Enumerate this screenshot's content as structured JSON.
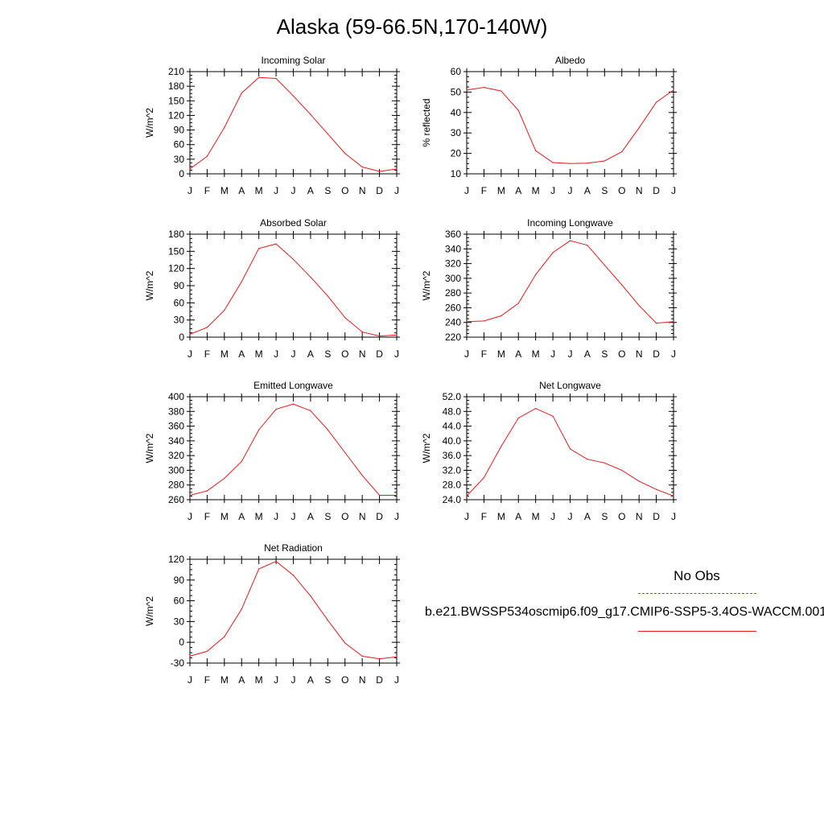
{
  "page": {
    "title": "Alaska (59-66.5N,170-140W)"
  },
  "legend": {
    "obs_label": "No Obs",
    "model_label": "b.e21.BWSSP534oscmip6.f09_g17.CMIP6-SSP5-3.4OS-WACCM.001",
    "obs_color": "#5050ff",
    "model_color": "#e41a1c"
  },
  "chart_data": [
    {
      "type": "line",
      "title": "Incoming Solar",
      "ylabel": "W/m^2",
      "categories": [
        "J",
        "F",
        "M",
        "A",
        "M",
        "J",
        "J",
        "A",
        "S",
        "O",
        "N",
        "D",
        "J"
      ],
      "ylim": [
        0,
        210
      ],
      "yticks": [
        "0",
        "30",
        "60",
        "90",
        "120",
        "150",
        "180",
        "210"
      ],
      "series": [
        {
          "values": [
            10,
            36,
            95,
            166,
            198,
            196,
            160,
            122,
            82,
            42,
            14,
            5,
            10
          ]
        }
      ]
    },
    {
      "type": "line",
      "title": "Albedo",
      "ylabel": "% reflected",
      "categories": [
        "J",
        "F",
        "M",
        "A",
        "M",
        "J",
        "J",
        "A",
        "S",
        "O",
        "N",
        "D",
        "J"
      ],
      "ylim": [
        10,
        60
      ],
      "yticks": [
        "10",
        "20",
        "30",
        "40",
        "50",
        "60"
      ],
      "series": [
        {
          "values": [
            51,
            52.3,
            50.5,
            41,
            21.3,
            15.5,
            15,
            15.2,
            16.3,
            20.8,
            32.5,
            45,
            51
          ]
        }
      ]
    },
    {
      "type": "line",
      "title": "Absorbed Solar",
      "ylabel": "W/m^2",
      "categories": [
        "J",
        "F",
        "M",
        "A",
        "M",
        "J",
        "J",
        "A",
        "S",
        "O",
        "N",
        "D",
        "J"
      ],
      "ylim": [
        0,
        180
      ],
      "yticks": [
        "0",
        "30",
        "60",
        "90",
        "120",
        "150",
        "180"
      ],
      "series": [
        {
          "values": [
            5,
            17,
            47,
            97,
            155,
            163,
            136,
            105,
            72,
            34,
            9,
            2,
            4
          ]
        }
      ]
    },
    {
      "type": "line",
      "title": "Incoming Longwave",
      "ylabel": "W/m^2",
      "categories": [
        "J",
        "F",
        "M",
        "A",
        "M",
        "J",
        "J",
        "A",
        "S",
        "O",
        "N",
        "D",
        "J"
      ],
      "ylim": [
        220,
        360
      ],
      "yticks": [
        "220",
        "240",
        "260",
        "280",
        "300",
        "320",
        "340",
        "360"
      ],
      "series": [
        {
          "values": [
            241,
            242,
            249,
            266,
            305,
            335,
            351,
            345,
            318,
            291,
            263,
            239,
            241
          ]
        }
      ]
    },
    {
      "type": "line",
      "title": "Emitted Longwave",
      "ylabel": "W/m^2",
      "categories": [
        "J",
        "F",
        "M",
        "A",
        "M",
        "J",
        "J",
        "A",
        "S",
        "O",
        "N",
        "D",
        "J"
      ],
      "ylim": [
        260,
        400
      ],
      "yticks": [
        "260",
        "280",
        "300",
        "320",
        "340",
        "360",
        "380",
        "400"
      ],
      "series": [
        {
          "values": [
            266,
            272,
            289,
            312,
            355,
            383,
            390,
            381,
            355,
            324,
            293,
            266,
            266
          ]
        }
      ]
    },
    {
      "type": "line",
      "title": "Net Longwave",
      "ylabel": "W/m^2",
      "categories": [
        "J",
        "F",
        "M",
        "A",
        "M",
        "J",
        "J",
        "A",
        "S",
        "O",
        "N",
        "D",
        "J"
      ],
      "ylim": [
        24,
        52
      ],
      "yticks": [
        "24.0",
        "28.0",
        "32.0",
        "36.0",
        "40.0",
        "44.0",
        "48.0",
        "52.0"
      ],
      "series": [
        {
          "values": [
            25,
            30,
            38.5,
            46.2,
            48.8,
            46.7,
            37.8,
            35,
            34,
            32,
            29,
            26.8,
            25
          ]
        }
      ]
    },
    {
      "type": "line",
      "title": "Net Radiation",
      "ylabel": "W/m^2",
      "categories": [
        "J",
        "F",
        "M",
        "A",
        "M",
        "J",
        "J",
        "A",
        "S",
        "O",
        "N",
        "D",
        "J"
      ],
      "ylim": [
        -30,
        120
      ],
      "yticks": [
        "-30",
        "0",
        "30",
        "60",
        "90",
        "120"
      ],
      "series": [
        {
          "values": [
            -20,
            -13,
            8,
            48,
            106,
            117,
            97,
            67,
            32,
            -1,
            -20,
            -24,
            -21
          ]
        }
      ]
    }
  ]
}
